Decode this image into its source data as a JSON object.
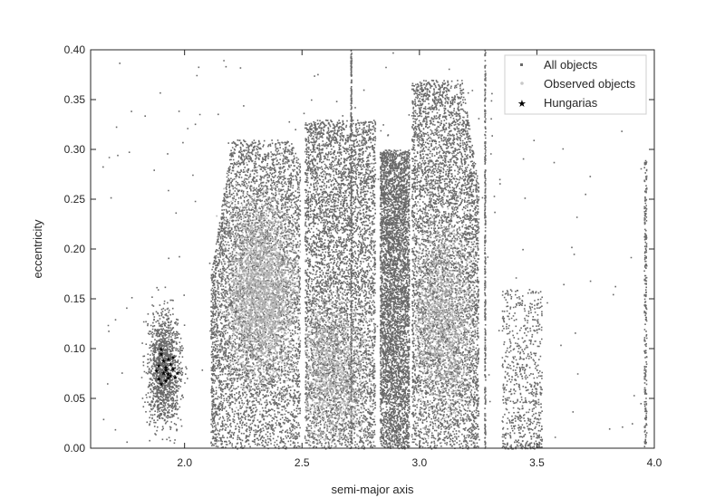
{
  "chart_data": {
    "type": "scatter",
    "title": "",
    "xlabel": "semi-major axis",
    "ylabel": "eccentricity",
    "xlim": [
      1.6,
      4.0
    ],
    "ylim": [
      0.0,
      0.4
    ],
    "xticks": [
      "2.0",
      "2.5",
      "3.0",
      "3.5",
      "4.0"
    ],
    "xtick_values": [
      2.0,
      2.5,
      3.0,
      3.5,
      4.0
    ],
    "yticks": [
      "0.00",
      "0.05",
      "0.10",
      "0.15",
      "0.20",
      "0.25",
      "0.30",
      "0.35",
      "0.40"
    ],
    "ytick_values": [
      0.0,
      0.05,
      0.1,
      0.15,
      0.2,
      0.25,
      0.3,
      0.35,
      0.4
    ],
    "grid": false,
    "legend_position": "top-right",
    "series": [
      {
        "name": "All objects",
        "marker": "square",
        "color": "#696969",
        "clusters": [
          {
            "x_range": [
              1.83,
              1.98
            ],
            "y_center": 0.08,
            "y_spread": 0.035,
            "density": "medium"
          },
          {
            "x_range": [
              2.11,
              2.5
            ],
            "y_range": [
              0.0,
              0.31
            ],
            "density": "high"
          },
          {
            "x_range": [
              2.51,
              2.82
            ],
            "y_range": [
              0.0,
              0.33
            ],
            "density": "high"
          },
          {
            "x_range": [
              2.83,
              2.96
            ],
            "y_range": [
              0.0,
              0.3
            ],
            "density": "high"
          },
          {
            "x_range": [
              2.96,
              3.25
            ],
            "y_range": [
              0.0,
              0.38
            ],
            "density": "high"
          },
          {
            "x_range": [
              3.35,
              3.5
            ],
            "y_range": [
              0.0,
              0.15
            ],
            "density": "low"
          },
          {
            "x_range": [
              3.9,
              3.98
            ],
            "y_range": [
              0.0,
              0.29
            ],
            "density": "low"
          }
        ]
      },
      {
        "name": "Observed objects",
        "marker": "circle",
        "color": "#b0b0b0",
        "clusters": [
          {
            "x_center": 2.35,
            "y_center": 0.17,
            "density": "high"
          },
          {
            "x_center": 2.6,
            "y_center": 0.1,
            "density": "medium"
          },
          {
            "x_center": 3.1,
            "y_center": 0.14,
            "density": "medium"
          }
        ]
      },
      {
        "name": "Hungarias",
        "marker": "star",
        "color": "#000000",
        "points": [
          [
            1.9,
            0.095
          ],
          [
            1.91,
            0.088
          ],
          [
            1.92,
            0.082
          ],
          [
            1.93,
            0.075
          ],
          [
            1.88,
            0.078
          ],
          [
            1.89,
            0.07
          ],
          [
            1.94,
            0.085
          ],
          [
            1.95,
            0.08
          ],
          [
            1.92,
            0.068
          ],
          [
            1.96,
            0.072
          ],
          [
            1.9,
            0.065
          ],
          [
            1.93,
            0.09
          ],
          [
            1.91,
            0.076
          ],
          [
            1.94,
            0.073
          ],
          [
            1.89,
            0.083
          ],
          [
            1.95,
            0.092
          ],
          [
            1.92,
            0.079
          ],
          [
            1.97,
            0.076
          ],
          [
            1.9,
            0.1
          ],
          [
            1.93,
            0.071
          ]
        ]
      }
    ]
  }
}
